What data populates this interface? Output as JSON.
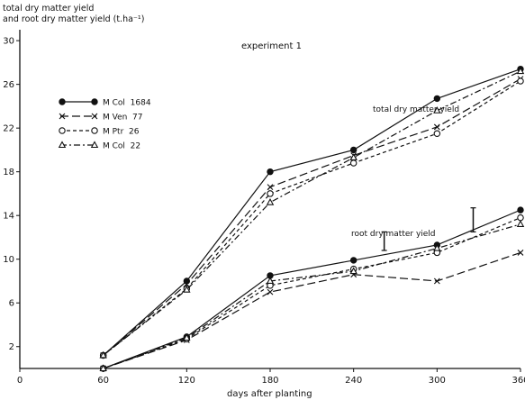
{
  "chart_data": {
    "type": "line",
    "title": "experiment 1",
    "ylabel_lines": [
      "total dry matter yield",
      "and root dry matter yield (t.ha⁻¹)"
    ],
    "xlabel": "days after planting",
    "xlim": [
      0,
      360
    ],
    "ylim": [
      0,
      31
    ],
    "x_ticks": [
      0,
      60,
      120,
      180,
      240,
      300,
      360
    ],
    "y_ticks": [
      2,
      6,
      10,
      14,
      18,
      22,
      26,
      30
    ],
    "grid": false,
    "legend_position": "upper-left",
    "annotations": [
      {
        "text": "total dry matter yield",
        "near_x": 303,
        "near_y": 27.2
      },
      {
        "text": "root dry matter yield",
        "near_x": 258,
        "near_y": 12.7
      }
    ],
    "error_bars": [
      {
        "x": 326,
        "y_low": 12.5,
        "y_high": 14.7
      },
      {
        "x": 262,
        "y_low": 10.8,
        "y_high": 12.5
      }
    ],
    "series": [
      {
        "name": "M Col  1684",
        "marker": "filled-circle",
        "dash": "solid",
        "group": "total",
        "x": [
          60,
          120,
          180,
          240,
          300,
          360
        ],
        "y": [
          1.2,
          8.0,
          18.0,
          20.0,
          24.7,
          27.4
        ]
      },
      {
        "name": "M Ven  77",
        "marker": "cross",
        "dash": "long-dash",
        "group": "total",
        "x": [
          60,
          120,
          180,
          240,
          300,
          360
        ],
        "y": [
          1.2,
          7.7,
          16.6,
          19.5,
          22.1,
          26.5
        ]
      },
      {
        "name": "M Ptr  26",
        "marker": "open-circle",
        "dash": "short-dash",
        "group": "total",
        "x": [
          60,
          120,
          180,
          240,
          300,
          360
        ],
        "y": [
          1.2,
          7.3,
          16.0,
          18.8,
          21.5,
          26.3
        ]
      },
      {
        "name": "M Col  22",
        "marker": "triangle",
        "dash": "dash-dot",
        "group": "total",
        "x": [
          60,
          120,
          180,
          240,
          300,
          360
        ],
        "y": [
          1.2,
          7.2,
          15.2,
          19.3,
          23.6,
          27.2
        ]
      },
      {
        "name": "M Col  1684",
        "marker": "filled-circle",
        "dash": "solid",
        "group": "root",
        "x": [
          60,
          120,
          180,
          240,
          300,
          360
        ],
        "y": [
          0.0,
          2.9,
          8.5,
          9.9,
          11.3,
          14.5
        ]
      },
      {
        "name": "M Ven  77",
        "marker": "cross",
        "dash": "long-dash",
        "group": "root",
        "x": [
          60,
          120,
          180,
          240,
          300,
          360
        ],
        "y": [
          0.0,
          2.6,
          7.0,
          8.6,
          8.0,
          10.6
        ]
      },
      {
        "name": "M Ptr  26",
        "marker": "open-circle",
        "dash": "short-dash",
        "group": "root",
        "x": [
          60,
          120,
          180,
          240,
          300,
          360
        ],
        "y": [
          0.0,
          2.7,
          7.6,
          9.1,
          10.6,
          13.8
        ]
      },
      {
        "name": "M Col  22",
        "marker": "triangle",
        "dash": "dash-dot",
        "group": "root",
        "x": [
          60,
          120,
          180,
          240,
          300,
          360
        ],
        "y": [
          0.0,
          2.8,
          8.0,
          8.9,
          11.0,
          13.2
        ]
      }
    ]
  }
}
